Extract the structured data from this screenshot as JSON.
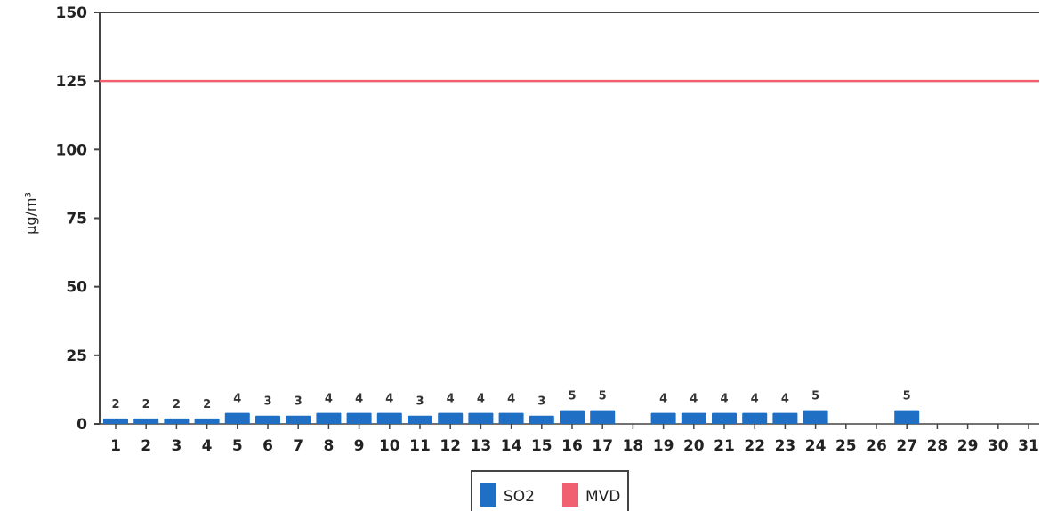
{
  "chart_data": {
    "type": "bar",
    "ylabel": "µg/m³",
    "ylim": [
      0,
      150
    ],
    "yticks": [
      0,
      25,
      50,
      75,
      100,
      125,
      150
    ],
    "categories": [
      "1",
      "2",
      "3",
      "4",
      "5",
      "6",
      "7",
      "8",
      "9",
      "10",
      "11",
      "12",
      "13",
      "14",
      "15",
      "16",
      "17",
      "18",
      "19",
      "20",
      "21",
      "22",
      "23",
      "24",
      "25",
      "26",
      "27",
      "28",
      "29",
      "30",
      "31"
    ],
    "series": [
      {
        "name": "SO2",
        "type": "bar",
        "color": "#1f6fc5",
        "values": [
          2,
          2,
          2,
          2,
          4,
          3,
          3,
          4,
          4,
          4,
          3,
          4,
          4,
          4,
          3,
          5,
          5,
          null,
          4,
          4,
          4,
          4,
          4,
          5,
          null,
          null,
          5,
          null,
          null,
          null,
          null
        ]
      },
      {
        "name": "MVD",
        "type": "line",
        "color": "#f06070",
        "value": 125
      }
    ],
    "grid": false,
    "legend": "bottom-center"
  }
}
